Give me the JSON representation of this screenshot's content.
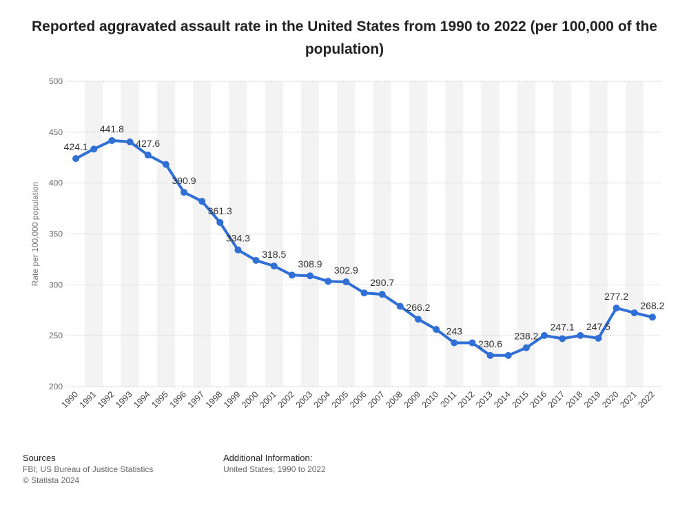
{
  "title": "Reported aggravated assault rate in the United States from 1990 to 2022 (per 100,000 of the population)",
  "chart_data": {
    "type": "line",
    "title": "Reported aggravated assault rate in the United States from 1990 to 2022 (per 100,000 of the population)",
    "xlabel": "",
    "ylabel": "Rate per 100,000 population",
    "ylim": [
      200,
      500
    ],
    "yticks": [
      200,
      250,
      300,
      350,
      400,
      450,
      500
    ],
    "grid": true,
    "color": "#2f6fd6",
    "categories": [
      "1990",
      "1991",
      "1992",
      "1993",
      "1994",
      "1995",
      "1996",
      "1997",
      "1998",
      "1999",
      "2000",
      "2001",
      "2002",
      "2003",
      "2004",
      "2005",
      "2006",
      "2007",
      "2008",
      "2009",
      "2010",
      "2011",
      "2012",
      "2013",
      "2014",
      "2015",
      "2016",
      "2017",
      "2018",
      "2019",
      "2020",
      "2021",
      "2022"
    ],
    "values": [
      424.1,
      433.4,
      441.8,
      440.5,
      427.6,
      418.3,
      390.9,
      382.1,
      361.3,
      334.3,
      324.0,
      318.5,
      309.5,
      308.9,
      303.5,
      302.9,
      292.0,
      290.7,
      278.9,
      266.2,
      256.2,
      243.0,
      243.0,
      230.6,
      230.6,
      238.2,
      250.2,
      247.1,
      250.2,
      247.5,
      277.2,
      272.5,
      268.2
    ],
    "data_labels": [
      {
        "index": 0,
        "text": "424.1"
      },
      {
        "index": 2,
        "text": "441.8"
      },
      {
        "index": 4,
        "text": "427.6"
      },
      {
        "index": 6,
        "text": "390.9"
      },
      {
        "index": 8,
        "text": "361.3"
      },
      {
        "index": 9,
        "text": "334.3"
      },
      {
        "index": 11,
        "text": "318.5"
      },
      {
        "index": 13,
        "text": "308.9"
      },
      {
        "index": 15,
        "text": "302.9"
      },
      {
        "index": 17,
        "text": "290.7"
      },
      {
        "index": 19,
        "text": "266.2"
      },
      {
        "index": 21,
        "text": "243"
      },
      {
        "index": 23,
        "text": "230.6"
      },
      {
        "index": 25,
        "text": "238.2"
      },
      {
        "index": 27,
        "text": "247.1"
      },
      {
        "index": 29,
        "text": "247.5"
      },
      {
        "index": 30,
        "text": "277.2"
      },
      {
        "index": 32,
        "text": "268.2"
      }
    ]
  },
  "footer": {
    "sources_heading": "Sources",
    "sources_line1": "FBI; US Bureau of Justice Statistics",
    "sources_line2": "© Statista 2024",
    "info_heading": "Additional Information:",
    "info_line1": "United States; 1990 to 2022"
  }
}
